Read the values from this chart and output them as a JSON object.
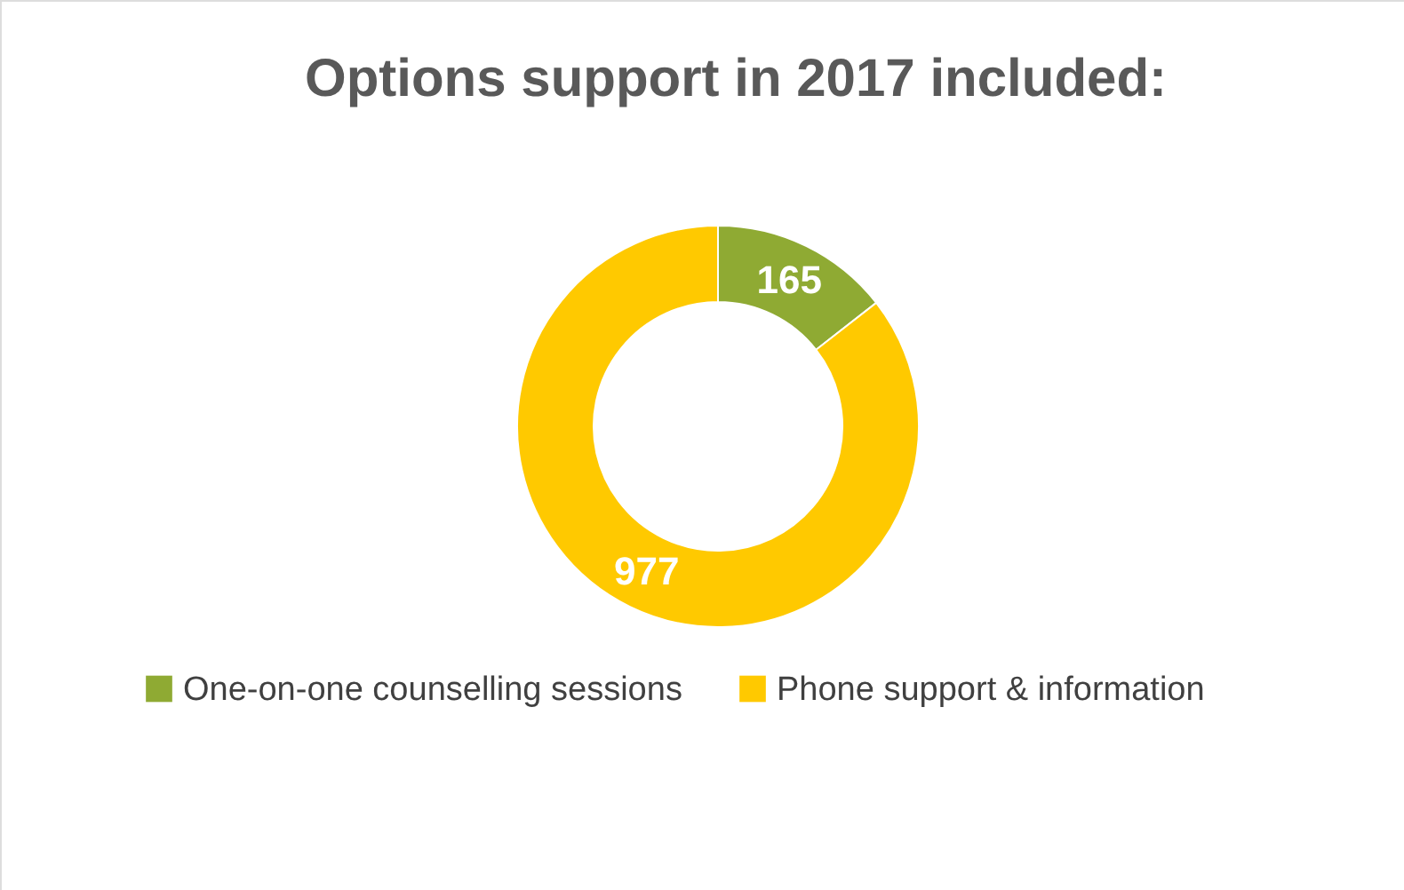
{
  "chart_data": {
    "type": "donut",
    "title": "Options support in 2017 included:",
    "categories": [
      "One-on-one counselling sessions",
      "Phone support & information"
    ],
    "values": [
      165,
      977
    ],
    "colors": [
      "#8faa33",
      "#ffc900"
    ],
    "data_labels": true,
    "legend": "bottom"
  }
}
